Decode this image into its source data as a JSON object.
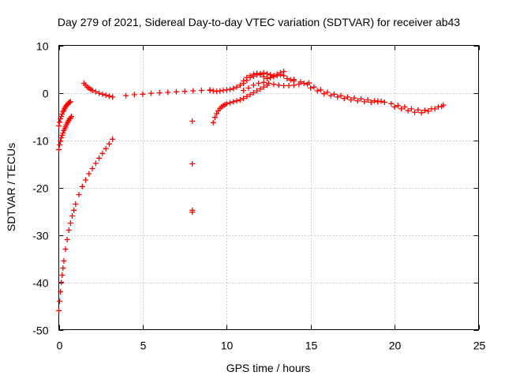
{
  "chart_data": {
    "type": "scatter",
    "title": "Day 279 of 2021, Sidereal Day-to-day VTEC variation (SDTVAR) for receiver ab43",
    "xlabel": "GPS time / hours",
    "ylabel": "SDTVAR / TECUs",
    "xlim": [
      0,
      25
    ],
    "ylim": [
      -50,
      10
    ],
    "xticks": [
      "0",
      "5",
      "10",
      "15",
      "20",
      "25"
    ],
    "yticks": [
      "10",
      "0",
      "-10",
      "-20",
      "-30",
      "-40",
      "-50"
    ],
    "grid": true,
    "marker": "+",
    "color": "#ff0000",
    "series": [
      {
        "name": "steep recovery arc A",
        "x": [
          0.0,
          0.05,
          0.1,
          0.15,
          0.2,
          0.25,
          0.3,
          0.35,
          0.4,
          0.45,
          0.5,
          0.55,
          0.6,
          0.65,
          0.7
        ],
        "y": [
          -7,
          -6.2,
          -5.5,
          -5,
          -4.5,
          -4,
          -3.7,
          -3.3,
          -3,
          -2.7,
          -2.5,
          -2.3,
          -2.1,
          -2,
          -1.9
        ]
      },
      {
        "name": "steep recovery arc B",
        "x": [
          0.0,
          0.05,
          0.1,
          0.15,
          0.2,
          0.25,
          0.3,
          0.35,
          0.4,
          0.45,
          0.5,
          0.55,
          0.6,
          0.65,
          0.7,
          0.75
        ],
        "y": [
          -12,
          -11,
          -10.2,
          -9.5,
          -9,
          -8.5,
          -8,
          -7.6,
          -7.2,
          -6.8,
          -6.4,
          -6.1,
          -5.8,
          -5.5,
          -5.3,
          -5
        ]
      },
      {
        "name": "deep recovery arc",
        "x": [
          0.0,
          0.05,
          0.1,
          0.15,
          0.2,
          0.25,
          0.3,
          0.4,
          0.5,
          0.6,
          0.7,
          0.8,
          0.9,
          1.0,
          1.2,
          1.4,
          1.6,
          1.8,
          2.0,
          2.2,
          2.4,
          2.6,
          2.8,
          3.0,
          3.2
        ],
        "y": [
          -46,
          -44,
          -42,
          -40,
          -38.5,
          -37,
          -35.5,
          -33,
          -31,
          -29,
          -27.5,
          -26,
          -24.8,
          -23.5,
          -21.5,
          -19.8,
          -18.4,
          -17.1,
          -16,
          -14.9,
          -13.8,
          -12.8,
          -11.8,
          -10.8,
          -9.8
        ]
      },
      {
        "name": "near-zero band (hours 1.5-9)",
        "x": [
          1.5,
          1.6,
          1.7,
          1.8,
          1.9,
          2.0,
          2.2,
          2.4,
          2.6,
          2.8,
          3.0,
          3.2,
          4.0,
          4.5,
          5.0,
          5.5,
          6.0,
          6.5,
          7.0,
          7.5,
          8.0,
          8.5,
          9.0
        ],
        "y": [
          2,
          1.6,
          1.2,
          1,
          0.7,
          0.5,
          0.2,
          -0.1,
          -0.3,
          -0.5,
          -0.7,
          -0.9,
          -0.6,
          -0.4,
          -0.3,
          -0.1,
          0,
          0.1,
          0.2,
          0.3,
          0.4,
          0.5,
          0.6
        ]
      },
      {
        "name": "isolated points near hour 8",
        "x": [
          7.95,
          7.95,
          7.95,
          7.95
        ],
        "y": [
          -6,
          -15,
          -24.8,
          -25.2
        ]
      },
      {
        "name": "recovery arc near hour 9",
        "x": [
          9.2,
          9.3,
          9.4,
          9.5,
          9.6,
          9.7,
          9.8,
          9.9,
          10.0,
          10.2,
          10.4,
          10.6,
          10.8,
          11.0,
          11.2,
          11.4,
          11.6,
          11.8,
          12.0,
          12.2,
          12.4
        ],
        "y": [
          -6.3,
          -5.2,
          -4.4,
          -3.8,
          -3.3,
          -3,
          -2.7,
          -2.5,
          -2.3,
          -2.1,
          -1.9,
          -1.7,
          -1.5,
          -1.2,
          -0.8,
          -0.4,
          0,
          0.4,
          0.8,
          1.2,
          1.6
        ]
      },
      {
        "name": "main band (hours 9-13)",
        "x": [
          9.0,
          9.2,
          9.4,
          9.6,
          9.8,
          10.0,
          10.2,
          10.4,
          10.6,
          10.8,
          11.0,
          11.2,
          11.4,
          11.6,
          11.8,
          12.0,
          12.2,
          12.4,
          12.6,
          12.8,
          13.0,
          13.2,
          13.4
        ],
        "y": [
          0.5,
          0.4,
          0.3,
          0.4,
          0.5,
          0.6,
          0.7,
          0.9,
          1.2,
          1.6,
          2,
          2.6,
          3.2,
          3.5,
          3.8,
          4,
          4.2,
          4,
          3.8,
          3.6,
          3.9,
          4.2,
          4.5
        ]
      },
      {
        "name": "upper arc (hours 11-14)",
        "x": [
          11.0,
          11.2,
          11.4,
          11.6,
          11.8,
          12.0,
          12.2,
          12.4,
          12.6,
          12.8,
          13.0,
          13.2,
          13.4,
          13.6,
          13.8,
          14.0
        ],
        "y": [
          2.5,
          3.2,
          3.6,
          3.9,
          4.1,
          3.8,
          3.4,
          3.0,
          3.2,
          3.4,
          3.6,
          3.8,
          3.6,
          3.0,
          2.7,
          2.5
        ]
      },
      {
        "name": "secondary band (hours 11-15)",
        "x": [
          11.0,
          11.3,
          11.6,
          11.9,
          12.2,
          12.5,
          12.8,
          13.1,
          13.4,
          13.7,
          14.0,
          14.3,
          14.6,
          14.9
        ],
        "y": [
          0.5,
          1.0,
          1.6,
          2.0,
          2.2,
          2.0,
          1.8,
          1.6,
          1.5,
          1.5,
          1.6,
          1.8,
          2.0,
          2.1
        ]
      },
      {
        "name": "declining band (hours 14-19)",
        "x": [
          14.0,
          14.4,
          14.8,
          15.2,
          15.6,
          16.0,
          16.4,
          16.8,
          17.2,
          17.6,
          18.0,
          18.4,
          18.8,
          19.2
        ],
        "y": [
          2.8,
          2.3,
          1.8,
          1.2,
          0.6,
          0.1,
          -0.3,
          -0.6,
          -0.9,
          -1.1,
          -1.3,
          -1.5,
          -1.7,
          -1.8
        ]
      },
      {
        "name": "lower declining band (hours 15-19)",
        "x": [
          15.0,
          15.4,
          15.8,
          16.2,
          16.6,
          17.0,
          17.4,
          17.8,
          18.2,
          18.6,
          19.0
        ],
        "y": [
          1.0,
          0.4,
          -0.2,
          -0.6,
          -0.9,
          -1.2,
          -1.5,
          -1.7,
          -1.9,
          -2.0,
          -1.9
        ]
      },
      {
        "name": "tail band (hours 19-23)",
        "x": [
          19.0,
          19.4,
          19.8,
          20.2,
          20.6,
          21.0,
          21.4,
          21.8,
          22.2,
          22.6,
          22.9
        ],
        "y": [
          -1.8,
          -2.0,
          -2.3,
          -2.7,
          -3.0,
          -3.4,
          -3.6,
          -3.7,
          -3.4,
          -3.0,
          -2.6
        ]
      },
      {
        "name": "lower tail band (hours 20-23)",
        "x": [
          20.0,
          20.4,
          20.8,
          21.2,
          21.6,
          22.0,
          22.4,
          22.8
        ],
        "y": [
          -3.0,
          -3.4,
          -3.8,
          -4.1,
          -4.2,
          -3.9,
          -3.4,
          -2.9
        ]
      }
    ]
  }
}
